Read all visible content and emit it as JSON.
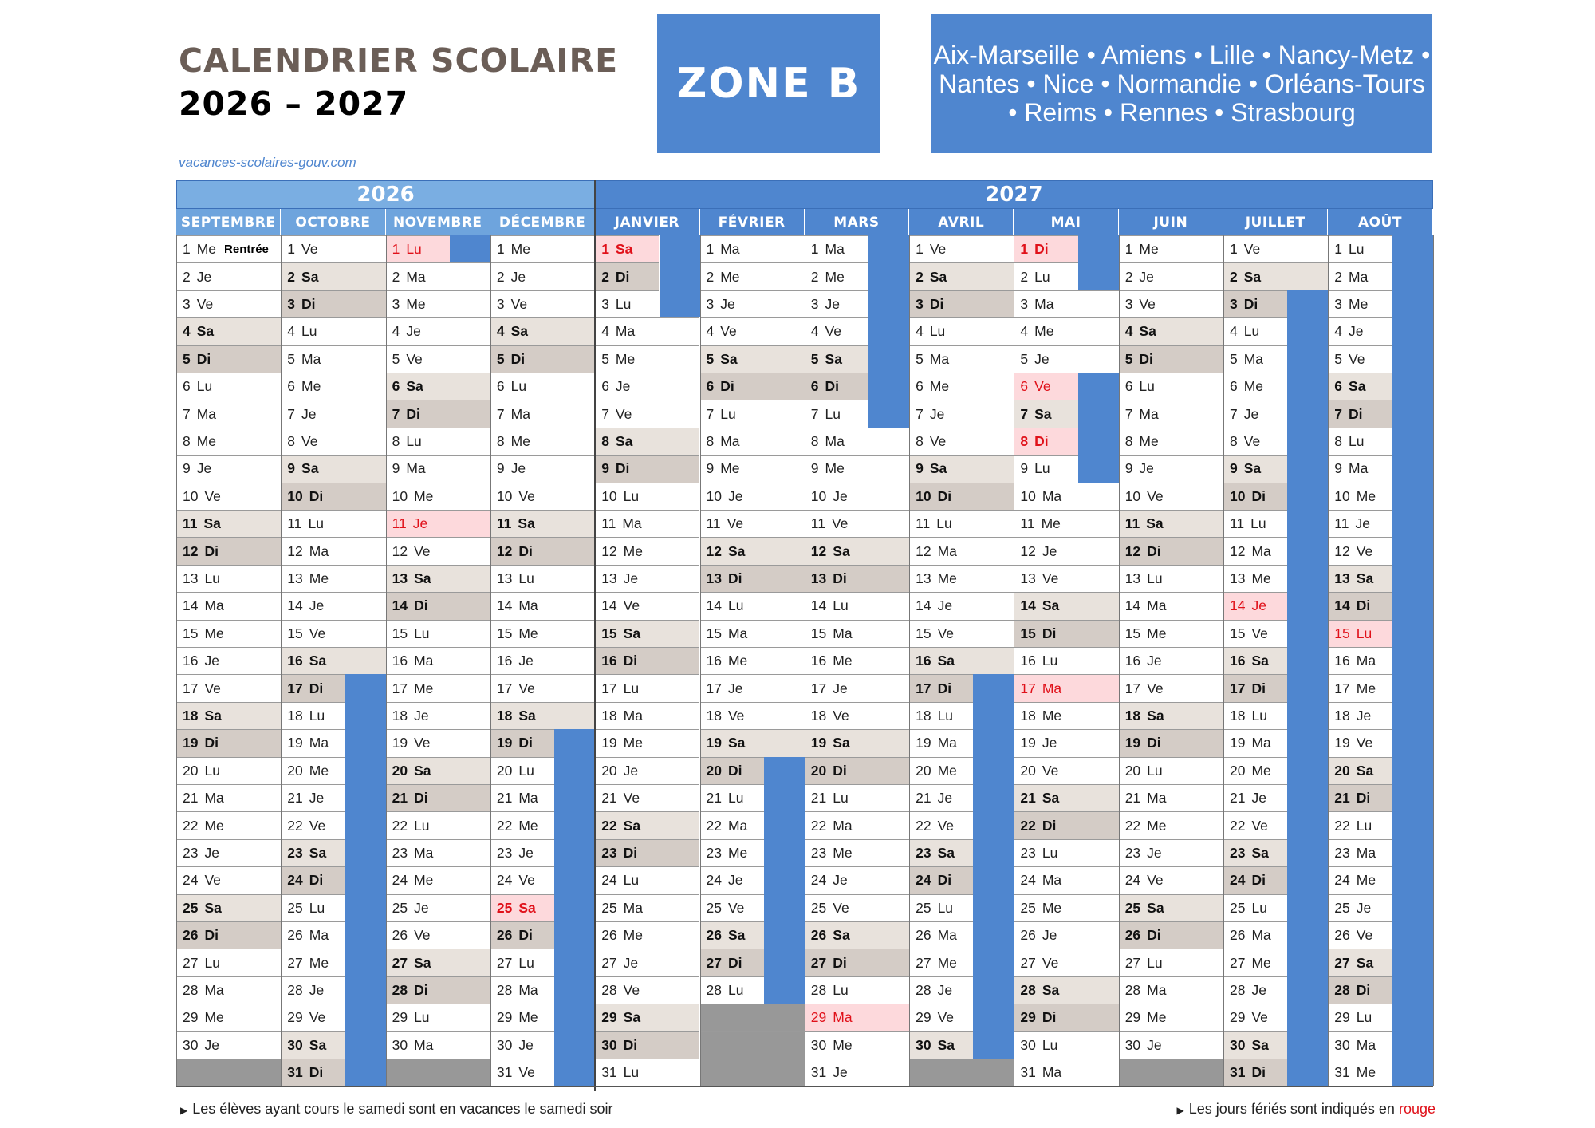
{
  "header": {
    "title_line1": "CALENDRIER SCOLAIRE",
    "title_line2": "2026 – 2027",
    "zone": "ZONE B",
    "academies": "Aix-Marseille • Amiens • Lille • Nancy-Metz • Nantes • Nice • Normandie • Orléans-Tours • Reims • Rennes • Strasbourg",
    "website": "vacances-scolaires-gouv.com"
  },
  "colors": {
    "accent_blue": "#4f86cf",
    "weekend": "#e8e2dc",
    "sunday": "#d4ccc6",
    "holiday_bg": "#fdd9dc",
    "holiday_text": "#e0111a",
    "filler": "#989898"
  },
  "years": [
    {
      "label": "2026",
      "months": [
        0,
        1,
        2,
        3
      ]
    },
    {
      "label": "2027",
      "months": [
        4,
        5,
        6,
        7,
        8,
        9,
        10,
        11
      ]
    }
  ],
  "months": [
    {
      "name": "SEPTEMBRE",
      "start": 2,
      "days": 30,
      "holidays": [],
      "vacation": [],
      "note": {
        "day": 1,
        "text": "Rentrée"
      }
    },
    {
      "name": "OCTOBRE",
      "start": 4,
      "days": 31,
      "holidays": [],
      "vacation": [
        [
          17,
          31
        ]
      ]
    },
    {
      "name": "NOVEMBRE",
      "start": 0,
      "days": 30,
      "holidays": [
        1,
        11
      ],
      "vacation": [
        [
          1,
          1
        ]
      ]
    },
    {
      "name": "DÉCEMBRE",
      "start": 2,
      "days": 31,
      "holidays": [
        25
      ],
      "vacation": [
        [
          19,
          31
        ]
      ]
    },
    {
      "name": "JANVIER",
      "start": 5,
      "days": 31,
      "holidays": [
        1
      ],
      "vacation": [
        [
          1,
          3
        ]
      ]
    },
    {
      "name": "FÉVRIER",
      "start": 1,
      "days": 28,
      "holidays": [],
      "vacation": [
        [
          20,
          28
        ]
      ]
    },
    {
      "name": "MARS",
      "start": 1,
      "days": 31,
      "holidays": [
        29
      ],
      "vacation": [
        [
          1,
          7
        ]
      ]
    },
    {
      "name": "AVRIL",
      "start": 4,
      "days": 30,
      "holidays": [],
      "vacation": [
        [
          17,
          30
        ]
      ]
    },
    {
      "name": "MAI",
      "start": 6,
      "days": 31,
      "holidays": [
        1,
        6,
        8,
        17
      ],
      "vacation": [
        [
          1,
          2
        ],
        [
          6,
          9
        ]
      ]
    },
    {
      "name": "JUIN",
      "start": 2,
      "days": 30,
      "holidays": [],
      "vacation": []
    },
    {
      "name": "JUILLET",
      "start": 4,
      "days": 31,
      "holidays": [
        14
      ],
      "vacation": [
        [
          3,
          31
        ]
      ]
    },
    {
      "name": "AOÛT",
      "start": 0,
      "days": 31,
      "holidays": [
        15
      ],
      "vacation": [
        [
          1,
          31
        ]
      ]
    }
  ],
  "day_abbr": [
    "Lu",
    "Ma",
    "Me",
    "Je",
    "Ve",
    "Sa",
    "Di"
  ],
  "footer": {
    "left_note": "Les élèves ayant cours le samedi sont en vacances le samedi soir",
    "right_note_prefix": "Les jours fériés sont indiqués en",
    "right_note_red": "rouge"
  }
}
